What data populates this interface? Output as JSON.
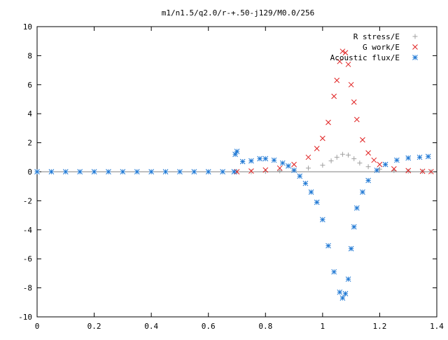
{
  "chart_data": {
    "type": "scatter",
    "title": "m1/n1.5/q2.0/r-+.50-j129/M0.0/256",
    "xlabel": "",
    "ylabel": "",
    "xlim": [
      0,
      1.4
    ],
    "ylim": [
      -10,
      10
    ],
    "xticks": [
      0,
      0.2,
      0.4,
      0.6,
      0.8,
      1,
      1.2,
      1.4
    ],
    "yticks": [
      -10,
      -8,
      -6,
      -4,
      -2,
      0,
      2,
      4,
      6,
      8,
      10
    ],
    "grid": false,
    "legend_position": "top-right",
    "series": [
      {
        "name": "R stress/E",
        "marker": "plus",
        "color": "#a0a0a0",
        "points": [
          [
            0.7,
            0.0
          ],
          [
            0.75,
            0.0
          ],
          [
            0.8,
            0.02
          ],
          [
            0.85,
            0.06
          ],
          [
            0.9,
            0.12
          ],
          [
            0.95,
            0.25
          ],
          [
            1.0,
            0.45
          ],
          [
            1.03,
            0.75
          ],
          [
            1.05,
            1.0
          ],
          [
            1.07,
            1.2
          ],
          [
            1.09,
            1.15
          ],
          [
            1.11,
            0.9
          ],
          [
            1.13,
            0.6
          ],
          [
            1.16,
            0.35
          ],
          [
            1.2,
            0.18
          ],
          [
            1.25,
            0.08
          ],
          [
            1.3,
            0.04
          ],
          [
            1.35,
            0.02
          ],
          [
            1.38,
            0.01
          ]
        ]
      },
      {
        "name": "G work/E",
        "marker": "cross",
        "color": "#e02020",
        "points": [
          [
            0.7,
            0.0
          ],
          [
            0.75,
            0.05
          ],
          [
            0.8,
            0.12
          ],
          [
            0.85,
            0.25
          ],
          [
            0.9,
            0.5
          ],
          [
            0.95,
            1.0
          ],
          [
            0.98,
            1.6
          ],
          [
            1.0,
            2.3
          ],
          [
            1.02,
            3.4
          ],
          [
            1.04,
            5.2
          ],
          [
            1.05,
            6.3
          ],
          [
            1.06,
            7.6
          ],
          [
            1.07,
            8.3
          ],
          [
            1.08,
            8.2
          ],
          [
            1.09,
            7.4
          ],
          [
            1.1,
            6.0
          ],
          [
            1.11,
            4.8
          ],
          [
            1.12,
            3.6
          ],
          [
            1.14,
            2.2
          ],
          [
            1.16,
            1.3
          ],
          [
            1.18,
            0.8
          ],
          [
            1.2,
            0.5
          ],
          [
            1.25,
            0.2
          ],
          [
            1.3,
            0.08
          ],
          [
            1.35,
            0.03
          ],
          [
            1.38,
            0.01
          ]
        ]
      },
      {
        "name": "Acoustic flux/E",
        "marker": "star",
        "color": "#1f78d4",
        "points": [
          [
            0.0,
            0.0
          ],
          [
            0.05,
            0.0
          ],
          [
            0.1,
            0.0
          ],
          [
            0.15,
            0.0
          ],
          [
            0.2,
            0.0
          ],
          [
            0.25,
            0.0
          ],
          [
            0.3,
            0.0
          ],
          [
            0.35,
            0.0
          ],
          [
            0.4,
            0.0
          ],
          [
            0.45,
            0.0
          ],
          [
            0.5,
            0.0
          ],
          [
            0.55,
            0.0
          ],
          [
            0.6,
            0.0
          ],
          [
            0.65,
            0.0
          ],
          [
            0.69,
            0.0
          ],
          [
            0.694,
            1.2
          ],
          [
            0.7,
            1.4
          ],
          [
            0.72,
            0.7
          ],
          [
            0.75,
            0.75
          ],
          [
            0.78,
            0.9
          ],
          [
            0.8,
            0.9
          ],
          [
            0.83,
            0.8
          ],
          [
            0.86,
            0.6
          ],
          [
            0.88,
            0.4
          ],
          [
            0.9,
            0.1
          ],
          [
            0.92,
            -0.3
          ],
          [
            0.94,
            -0.8
          ],
          [
            0.96,
            -1.4
          ],
          [
            0.98,
            -2.1
          ],
          [
            1.0,
            -3.3
          ],
          [
            1.02,
            -5.1
          ],
          [
            1.04,
            -6.9
          ],
          [
            1.06,
            -8.3
          ],
          [
            1.07,
            -8.7
          ],
          [
            1.08,
            -8.4
          ],
          [
            1.09,
            -7.4
          ],
          [
            1.1,
            -5.3
          ],
          [
            1.11,
            -3.8
          ],
          [
            1.12,
            -2.5
          ],
          [
            1.14,
            -1.4
          ],
          [
            1.16,
            -0.6
          ],
          [
            1.19,
            0.1
          ],
          [
            1.22,
            0.5
          ],
          [
            1.26,
            0.8
          ],
          [
            1.3,
            0.95
          ],
          [
            1.34,
            1.0
          ],
          [
            1.37,
            1.05
          ]
        ]
      }
    ]
  }
}
